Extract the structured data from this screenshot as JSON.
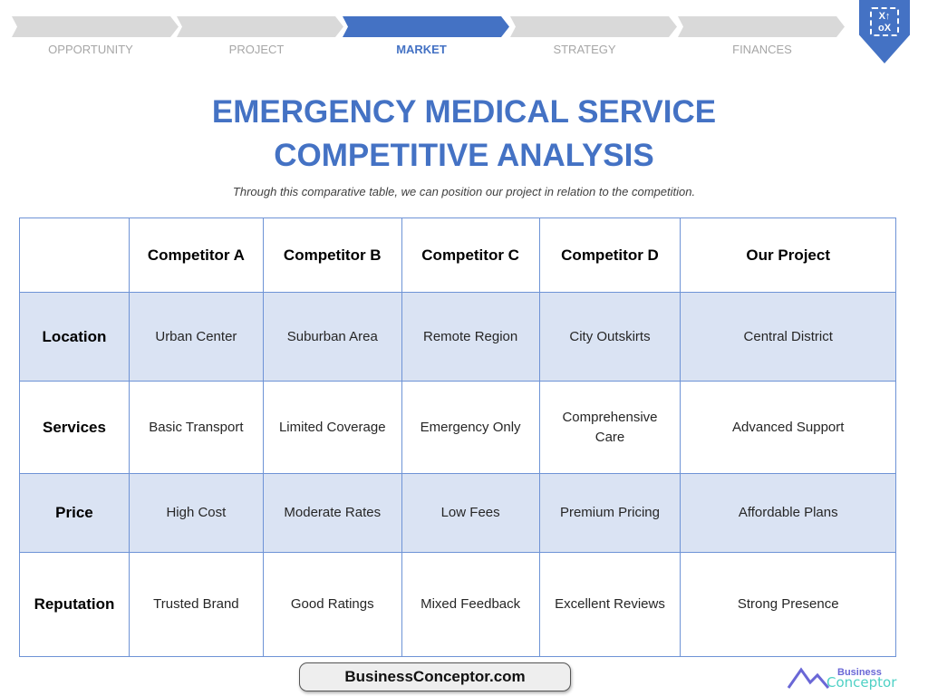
{
  "steps": [
    {
      "label": "OPPORTUNITY",
      "active": false
    },
    {
      "label": "PROJECT",
      "active": false
    },
    {
      "label": "MARKET",
      "active": true
    },
    {
      "label": "STRATEGY",
      "active": false
    },
    {
      "label": "FINANCES",
      "active": false
    }
  ],
  "badge_icon": "strategy-board-icon",
  "title_line1": "EMERGENCY MEDICAL SERVICE",
  "title_line2": "COMPETITIVE ANALYSIS",
  "subtitle": "Through this comparative table, we can position our project in relation to the competition.",
  "table": {
    "headers": [
      "",
      "Competitor A",
      "Competitor B",
      "Competitor C",
      "Competitor D",
      "Our Project"
    ],
    "rows": [
      [
        "Location",
        "Urban Center",
        "Suburban Area",
        "Remote Region",
        "City Outskirts",
        "Central District"
      ],
      [
        "Services",
        "Basic Transport",
        "Limited Coverage",
        "Emergency Only",
        "Comprehensive Care",
        "Advanced Support"
      ],
      [
        "Price",
        "High Cost",
        "Moderate Rates",
        "Low Fees",
        "Premium Pricing",
        "Affordable Plans"
      ],
      [
        "Reputation",
        "Trusted Brand",
        "Good Ratings",
        "Mixed Feedback",
        "Excellent Reviews",
        "Strong Presence"
      ]
    ]
  },
  "watermark": "BusinessConceptor.com",
  "logo": {
    "line1": "Business",
    "line2": "Conceptor"
  },
  "colors": {
    "accent": "#4472c4",
    "row_alt": "#dae3f3",
    "step_inactive": "#d9d9d9"
  }
}
